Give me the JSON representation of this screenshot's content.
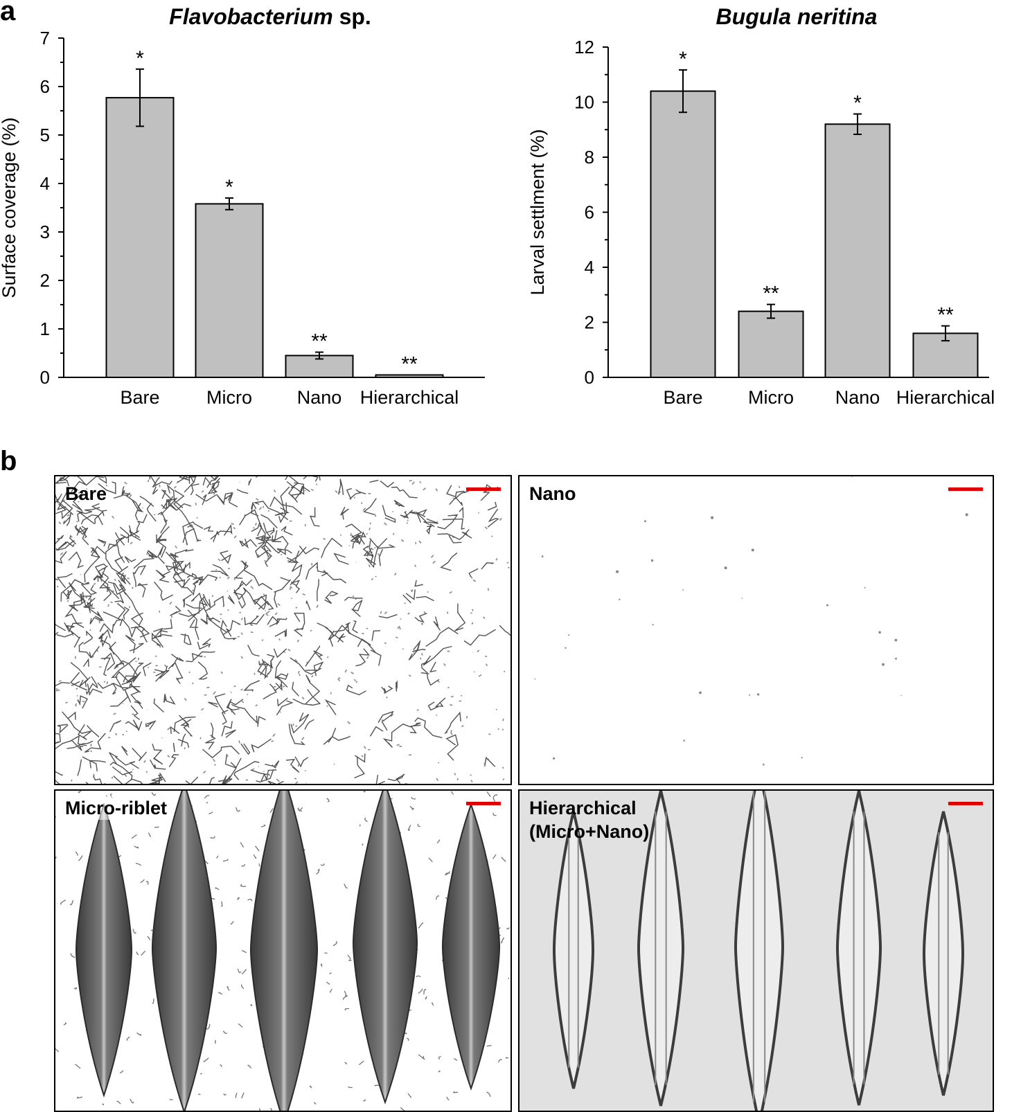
{
  "panel_labels": {
    "a": "a",
    "b": "b"
  },
  "colors": {
    "bar_fill": "#c0c0c0",
    "axis": "#000000",
    "scale_bar": "#e00000",
    "hier_background": "#e1e1e1"
  },
  "chart_data": [
    {
      "type": "bar",
      "title_italic": "Flavobacterium",
      "title_suffix": " sp.",
      "xlabel": "",
      "ylabel": "Surface coverage (%)",
      "ylim": [
        0,
        7
      ],
      "yticks": [
        "0",
        "1",
        "2",
        "3",
        "4",
        "5",
        "6",
        "7"
      ],
      "categories": [
        "Bare",
        "Micro",
        "Nano",
        "Hierarchical"
      ],
      "values": [
        5.77,
        3.58,
        0.45,
        0.05
      ],
      "errors": [
        0.59,
        0.12,
        0.07,
        0.0
      ],
      "significance": [
        "*",
        "*",
        "**",
        "**"
      ],
      "grid": false,
      "legend": "none"
    },
    {
      "type": "bar",
      "title_italic": "Bugula neritina",
      "title_suffix": "",
      "xlabel": "",
      "ylabel": "Larval settlment (%)",
      "ylim": [
        0,
        12
      ],
      "yticks": [
        "0",
        "2",
        "4",
        "6",
        "8",
        "10",
        "12"
      ],
      "categories": [
        "Bare",
        "Micro",
        "Nano",
        "Hierarchical"
      ],
      "values": [
        10.4,
        2.4,
        9.2,
        1.6
      ],
      "errors": [
        0.77,
        0.25,
        0.37,
        0.27
      ],
      "significance": [
        "*",
        "**",
        "*",
        "**"
      ],
      "grid": false,
      "legend": "none"
    }
  ],
  "micrographs": [
    {
      "label": "Bare",
      "content": "dense bacterial biofilm network"
    },
    {
      "label": "Nano",
      "content": "nearly clean surface"
    },
    {
      "label": "Micro-riblet",
      "content": "five dark riblets with scattered bacteria"
    },
    {
      "label": "Hierarchical\n(Micro+Nano)",
      "content": "five outlined riblets on grey background"
    }
  ]
}
